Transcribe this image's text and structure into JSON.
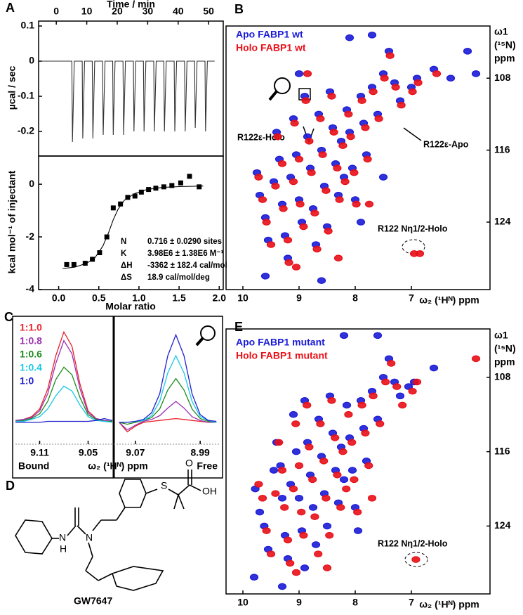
{
  "panels": [
    "A",
    "B",
    "C",
    "D",
    "E"
  ],
  "structure": {
    "labels": [
      "S",
      "O",
      "OH",
      "N",
      "H",
      "N"
    ],
    "name": "GW7647"
  },
  "chart_data": [
    {
      "type": "line",
      "xlabel": "Time / min",
      "ylabel": "µcal / sec",
      "color": "#333333",
      "x": [
        -5,
        5.1,
        5.3,
        5.9,
        8.5,
        8.7,
        9.3,
        11.8,
        12.0,
        12.6,
        15.2,
        15.4,
        16.0,
        18.5,
        18.7,
        19.3,
        21.9,
        22.1,
        22.7,
        25.3,
        25.5,
        26.1,
        28.6,
        28.8,
        29.4,
        32.0,
        32.2,
        32.8,
        35.3,
        35.5,
        36.1,
        38.7,
        38.9,
        39.5,
        42.1,
        42.3,
        42.9,
        45.4,
        45.6,
        46.2,
        48.8,
        49.0,
        49.6,
        52
      ],
      "values": [
        0,
        0,
        -0.23,
        0,
        0,
        -0.22,
        0,
        0,
        -0.22,
        0,
        0,
        -0.21,
        0,
        0,
        -0.21,
        0,
        0,
        -0.21,
        0,
        0,
        -0.2,
        0,
        0,
        -0.2,
        0,
        0,
        -0.2,
        0,
        0,
        -0.2,
        0,
        0,
        -0.2,
        0,
        0,
        -0.2,
        0,
        0,
        -0.19,
        0,
        0,
        -0.2,
        0,
        0
      ],
      "xlim": [
        -5.8,
        54.8
      ],
      "ylim": [
        -0.27,
        0.114
      ],
      "xticks": [
        0,
        10,
        20,
        30,
        40,
        50
      ],
      "yticks": [
        0.1,
        0,
        -0.1,
        -0.2
      ]
    },
    {
      "type": "scatter",
      "xlabel": "Molar ratio",
      "ylabel": "kcal mol⁻¹ of injectant",
      "series": [
        {
          "marker": "square",
          "color": "#000000",
          "x": [
            0.1,
            0.19,
            0.33,
            0.42,
            0.51,
            0.6,
            0.68,
            0.77,
            0.86,
            0.95,
            1.03,
            1.12,
            1.21,
            1.31,
            1.41,
            1.52,
            1.63,
            1.75
          ],
          "values": [
            -3.05,
            -3.05,
            -3.0,
            -2.85,
            -2.6,
            -2.0,
            -0.9,
            -0.75,
            -0.5,
            -0.45,
            -0.3,
            -0.2,
            -0.15,
            -0.1,
            -0.05,
            0.05,
            0.3,
            -0.1
          ]
        },
        {
          "marker": "line",
          "color": "#000000",
          "x": [
            0.05,
            0.2,
            0.35,
            0.45,
            0.55,
            0.62,
            0.68,
            0.74,
            0.82,
            0.95,
            1.1,
            1.3,
            1.5,
            1.8
          ],
          "values": [
            -3.2,
            -3.15,
            -3.0,
            -2.8,
            -2.35,
            -1.85,
            -1.35,
            -0.95,
            -0.6,
            -0.35,
            -0.2,
            -0.12,
            -0.09,
            -0.07
          ]
        }
      ],
      "parameters": [
        {
          "label": "N",
          "text": "0.716 ± 0.0290 sites"
        },
        {
          "label": "K",
          "text": "3.98E6 ± 1.38E6 M⁻¹"
        },
        {
          "label": "ΔH",
          "text": "-3362 ± 182.4 cal/mol"
        },
        {
          "label": "ΔS",
          "text": "18.9 cal/mol/deg"
        }
      ],
      "xlim": [
        -0.25,
        2.05
      ],
      "ylim": [
        -4,
        1.07
      ],
      "xticks": [
        {
          "value": 0,
          "label": "0.0"
        },
        0.5,
        {
          "value": 1,
          "label": "1.0"
        },
        1.5,
        {
          "value": 2,
          "label": "2.0"
        }
      ],
      "yticks": [
        0,
        -2,
        -4
      ]
    },
    {
      "type": "line",
      "label": "Bound",
      "legend": "upper left",
      "x": [
        9.14,
        9.13,
        9.12,
        9.11,
        9.1,
        9.09,
        9.08,
        9.07,
        9.06,
        9.05,
        9.04,
        9.03,
        9.02
      ],
      "series": [
        {
          "name": "1:1.0",
          "color": "#e8202a",
          "values": [
            2,
            3,
            6,
            14,
            35,
            70,
            95,
            80,
            40,
            12,
            4,
            2,
            1
          ]
        },
        {
          "name": "1:0.8",
          "color": "#9b30b0",
          "values": [
            2,
            3,
            5,
            12,
            30,
            62,
            86,
            72,
            35,
            10,
            4,
            2,
            1
          ]
        },
        {
          "name": "1:0.6",
          "color": "#1a8a1a",
          "values": [
            1,
            2,
            4,
            9,
            22,
            45,
            58,
            50,
            26,
            8,
            3,
            1,
            1
          ]
        },
        {
          "name": "1:0.4",
          "color": "#18c8e8",
          "values": [
            1,
            1,
            3,
            6,
            14,
            28,
            38,
            33,
            18,
            6,
            2,
            1,
            0
          ]
        },
        {
          "name": "1:0",
          "color": "#2020d0",
          "values": [
            0,
            0,
            0,
            0,
            1,
            1,
            1,
            1,
            1,
            1,
            2,
            4,
            2
          ]
        }
      ],
      "xlim": [
        9.14,
        9.02
      ],
      "ylim": [
        -23,
        110
      ],
      "xticks": [
        9.11,
        9.05
      ]
    },
    {
      "type": "line",
      "label": "Free",
      "xlabel": "ω₂ (¹Hᴺ) ppm",
      "x": [
        9.09,
        9.08,
        9.07,
        9.06,
        9.05,
        9.04,
        9.03,
        9.02,
        9.01,
        9.0,
        8.99,
        8.98,
        8.97
      ],
      "series": [
        {
          "color": "#e8202a",
          "values": [
            0,
            -10,
            -4,
            0,
            1,
            2,
            3,
            4,
            3,
            2,
            1,
            0,
            0
          ]
        },
        {
          "color": "#9b30b0",
          "values": [
            0,
            -8,
            -3,
            1,
            3,
            7,
            15,
            22,
            15,
            6,
            2,
            0,
            0
          ]
        },
        {
          "color": "#1a8a1a",
          "values": [
            0,
            -2,
            0,
            2,
            5,
            14,
            34,
            46,
            34,
            14,
            4,
            1,
            0
          ]
        },
        {
          "color": "#18c8e8",
          "values": [
            0,
            0,
            1,
            2,
            7,
            22,
            52,
            70,
            52,
            22,
            6,
            2,
            0
          ]
        },
        {
          "color": "#2020d0",
          "values": [
            0,
            0,
            1,
            3,
            10,
            30,
            70,
            92,
            70,
            30,
            8,
            2,
            1
          ]
        }
      ],
      "xlim": [
        9.095,
        8.965
      ],
      "ylim": [
        -23,
        110
      ],
      "xticks": [
        9.07,
        8.99
      ]
    },
    {
      "type": "scatter",
      "legend": "upper left",
      "xlabel": "ω₂ (¹Hᴺ) ppm",
      "ylabel": [
        "ω1",
        "(¹⁵N)",
        "ppm"
      ],
      "annotations": [
        "R122ε-Holo",
        "R122ε-Apo",
        "R122 Nη1/2-Holo"
      ],
      "series": [
        {
          "name": "Apo FABP1 wt",
          "color": "#1b1bd6",
          "marker": "peak",
          "x": [
            9.75,
            9.7,
            9.6,
            9.55,
            9.45,
            9.4,
            9.35,
            9.3,
            9.25,
            9.2,
            9.15,
            9.1,
            9.05,
            9.0,
            8.95,
            8.9,
            8.85,
            8.8,
            8.75,
            8.7,
            8.65,
            8.6,
            8.55,
            8.5,
            8.45,
            8.4,
            8.35,
            8.3,
            8.25,
            8.2,
            8.15,
            8.1,
            8.05,
            8.0,
            7.9,
            7.85,
            7.8,
            7.7,
            7.6,
            7.5,
            7.4,
            7.3,
            7.2,
            7.0,
            6.9,
            6.6,
            6.3,
            6.0,
            5.85,
            7.5,
            8.1,
            7.7,
            9.0,
            9.6,
            8.6,
            7.9
          ],
          "values": [
            118.5,
            121,
            123.5,
            126,
            119.5,
            114,
            117,
            122,
            125.5,
            128,
            119,
            112.5,
            116.5,
            121.5,
            124,
            110,
            114.5,
            118,
            122.5,
            126.5,
            112,
            116,
            120,
            124.5,
            109.5,
            113.5,
            117.5,
            121,
            115,
            119,
            111.5,
            114,
            118,
            121.5,
            110,
            113,
            116.5,
            109,
            112,
            107.5,
            105,
            108.5,
            110.5,
            109,
            108,
            107,
            108,
            105,
            107.5,
            119,
            103.5,
            103.2,
            107.5,
            130,
            130.5,
            124
          ]
        },
        {
          "name": "Holo FABP1 wt",
          "color": "#e81018",
          "marker": "peak",
          "x": [
            9.72,
            9.65,
            9.58,
            9.5,
            9.42,
            9.38,
            9.3,
            9.28,
            9.2,
            9.18,
            9.1,
            9.08,
            9.0,
            8.98,
            8.92,
            8.88,
            8.82,
            8.78,
            8.72,
            8.68,
            8.62,
            8.58,
            8.52,
            8.48,
            8.42,
            8.38,
            8.32,
            8.28,
            8.22,
            8.18,
            8.12,
            8.08,
            8.02,
            7.98,
            7.88,
            7.82,
            7.78,
            7.68,
            7.58,
            7.48,
            7.38,
            7.28,
            7.18,
            6.98,
            6.88,
            6.55,
            6.95,
            6.85,
            8.85,
            7.75,
            9.05,
            8.3
          ],
          "values": [
            119,
            121.5,
            124,
            126.5,
            120,
            114.5,
            117.5,
            122.5,
            126,
            128.5,
            119.5,
            113,
            117,
            122,
            124.5,
            110.5,
            115,
            118.5,
            123,
            127,
            112.5,
            116.5,
            120.5,
            125,
            110,
            114,
            118,
            121.5,
            115.5,
            119.5,
            112,
            114.5,
            118.5,
            122,
            110.5,
            113.5,
            117,
            109.5,
            112.5,
            108,
            105.5,
            109,
            111,
            109.5,
            108.5,
            107.5,
            127.5,
            127.5,
            107.5,
            122,
            129,
            128
          ]
        }
      ],
      "xlim": [
        10.3,
        5.6
      ],
      "ylim": [
        131.5,
        102.2
      ],
      "xticks": [
        10,
        9,
        8,
        7
      ],
      "yticks": [
        108,
        116,
        124
      ]
    },
    {
      "type": "scatter",
      "legend": "upper left",
      "xlabel": "ω₂ (¹Hᴺ) ppm",
      "ylabel": [
        "ω1",
        "(¹⁵N)",
        "ppm"
      ],
      "annotations": [
        "R122 Nη1/2-Holo"
      ],
      "series": [
        {
          "name": "Apo FABP1 mutant",
          "color": "#1b1bd6",
          "marker": "peak",
          "x": [
            9.78,
            9.7,
            9.62,
            9.55,
            9.45,
            9.4,
            9.33,
            9.3,
            9.25,
            9.2,
            9.15,
            9.1,
            9.05,
            9.0,
            8.95,
            8.9,
            8.85,
            8.8,
            8.75,
            8.7,
            8.65,
            8.6,
            8.55,
            8.5,
            8.45,
            8.4,
            8.35,
            8.3,
            8.25,
            8.2,
            8.15,
            8.1,
            8.05,
            8.0,
            7.9,
            7.85,
            7.8,
            7.7,
            7.6,
            7.5,
            7.4,
            7.3,
            7.2,
            7.05,
            6.95,
            6.6,
            8.2,
            7.6,
            9.8,
            8.9,
            7.95,
            9.3
          ],
          "values": [
            120,
            122.5,
            124,
            126.5,
            118,
            115,
            117.5,
            121,
            125,
            127.5,
            119.5,
            112,
            116,
            121,
            124.5,
            110.5,
            115,
            118.5,
            122,
            126,
            112.5,
            116.5,
            120.5,
            124,
            110,
            114,
            118,
            121.5,
            115.5,
            119,
            111,
            114.5,
            118,
            122,
            110.5,
            113.5,
            117,
            109.5,
            112.5,
            108,
            106,
            108.5,
            110,
            109,
            108.5,
            107,
            103.5,
            103.5,
            129.5,
            128.5,
            124.5,
            130.5
          ]
        },
        {
          "name": "Holo FABP1 mutant",
          "color": "#e81018",
          "marker": "peak",
          "x": [
            9.72,
            9.65,
            9.58,
            9.5,
            9.42,
            9.36,
            9.3,
            9.26,
            9.2,
            9.16,
            9.1,
            9.06,
            9.0,
            8.96,
            8.92,
            8.86,
            8.82,
            8.76,
            8.72,
            8.66,
            8.62,
            8.56,
            8.52,
            8.46,
            8.42,
            8.36,
            8.32,
            8.26,
            8.22,
            8.16,
            8.12,
            8.06,
            8.02,
            7.96,
            7.88,
            7.82,
            7.76,
            7.68,
            7.56,
            7.46,
            7.36,
            7.26,
            7.16,
            6.98,
            6.9,
            5.85,
            6.92,
            9.05,
            8.5,
            7.7
          ],
          "values": [
            119.5,
            121,
            124.5,
            127,
            120.5,
            115,
            118,
            122,
            125.5,
            128,
            120,
            113,
            117.5,
            122.5,
            125,
            111,
            115.5,
            119,
            123,
            127,
            113,
            117,
            121,
            125,
            110.5,
            114.5,
            118.5,
            122,
            116,
            120,
            112,
            115,
            119,
            122.5,
            111,
            114,
            117.5,
            110,
            113,
            108.5,
            106.5,
            109,
            111,
            109.5,
            108.5,
            106,
            127.6,
            129,
            128.5,
            121
          ]
        }
      ],
      "xlim": [
        10.3,
        5.6
      ],
      "ylim": [
        131.3,
        102.8
      ],
      "xticks": [
        10,
        9,
        8,
        7
      ],
      "yticks": [
        108,
        116,
        124
      ]
    }
  ]
}
